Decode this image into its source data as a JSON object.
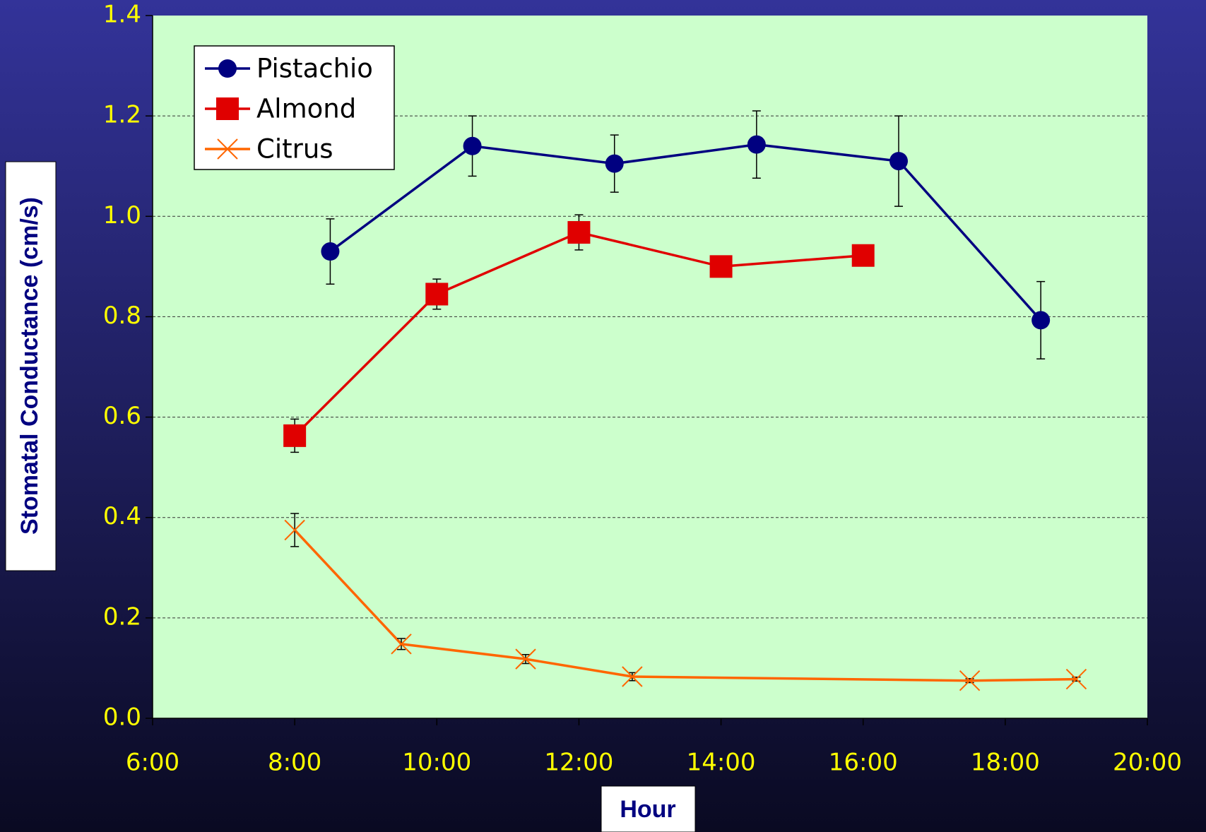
{
  "chart_data": {
    "type": "line",
    "xlabel": "Hour",
    "ylabel": "Stomatal Conductance (cm/s)",
    "xlim": [
      6,
      20
    ],
    "xticks": [
      {
        "value": 6,
        "label": "6:00"
      },
      {
        "value": 8,
        "label": "8:00"
      },
      {
        "value": 10,
        "label": "10:00"
      },
      {
        "value": 12,
        "label": "12:00"
      },
      {
        "value": 14,
        "label": "14:00"
      },
      {
        "value": 16,
        "label": "16:00"
      },
      {
        "value": 18,
        "label": "18:00"
      },
      {
        "value": 20,
        "label": "20:00"
      }
    ],
    "ylim": [
      0,
      1.4
    ],
    "yticks": [
      {
        "value": 0,
        "label": "0.0"
      },
      0.2,
      0.4,
      0.6,
      0.8,
      {
        "value": 1,
        "label": "1.0"
      },
      1.2,
      1.4
    ],
    "grid": true,
    "legend": "upper left",
    "series": [
      {
        "name": "Pistachio",
        "color": "#000080",
        "marker": "circle",
        "x": [
          8.5,
          10.5,
          12.5,
          14.5,
          16.5,
          18.5
        ],
        "values": [
          0.93,
          1.14,
          1.105,
          1.143,
          1.11,
          0.793
        ],
        "errors": [
          0.065,
          0.06,
          0.057,
          0.067,
          0.09,
          0.077
        ]
      },
      {
        "name": "Almond",
        "color": "#e00000",
        "marker": "square",
        "x": [
          8,
          10,
          12,
          14,
          16
        ],
        "values": [
          0.563,
          0.845,
          0.968,
          0.9,
          0.922
        ],
        "errors": [
          0.033,
          0.03,
          0.035,
          null,
          null
        ]
      },
      {
        "name": "Citrus",
        "color": "#ff6600",
        "marker": "x",
        "x": [
          8,
          9.5,
          11.25,
          12.75,
          17.5,
          19
        ],
        "values": [
          0.375,
          0.148,
          0.118,
          0.083,
          0.075,
          0.078
        ],
        "errors": [
          0.033,
          0.011,
          0.009,
          0.008,
          0.004,
          0.004
        ]
      }
    ]
  }
}
